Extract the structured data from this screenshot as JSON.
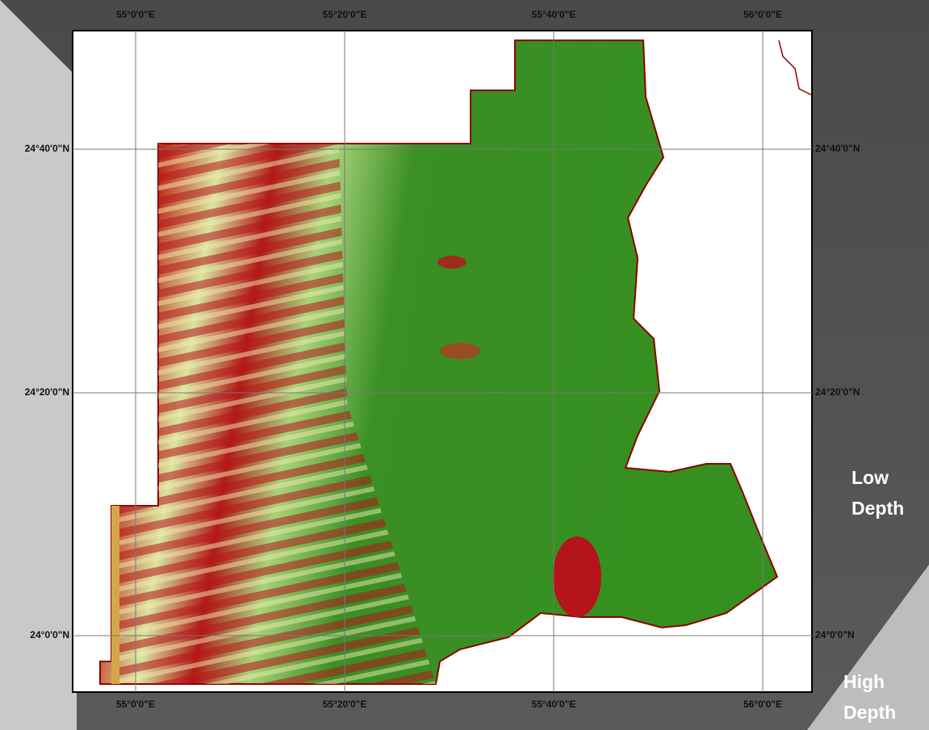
{
  "map": {
    "top_labels": [
      "55°0'0\"E",
      "55°20'0\"E",
      "55°40'0\"E",
      "56°0'0\"E"
    ],
    "bottom_labels": [
      "55°0'0\"E",
      "55°20'0\"E",
      "55°40'0\"E",
      "56°0'0\"E"
    ],
    "left_labels": [
      "24°40'0\"N",
      "24°20'0\"N",
      "24°0'0\"N"
    ],
    "right_labels": [
      "24°40'0\"N",
      "24°20'0\"N",
      "24°0'0\"N"
    ],
    "legend": {
      "low": "Low Depth",
      "high": "High Depth"
    }
  }
}
